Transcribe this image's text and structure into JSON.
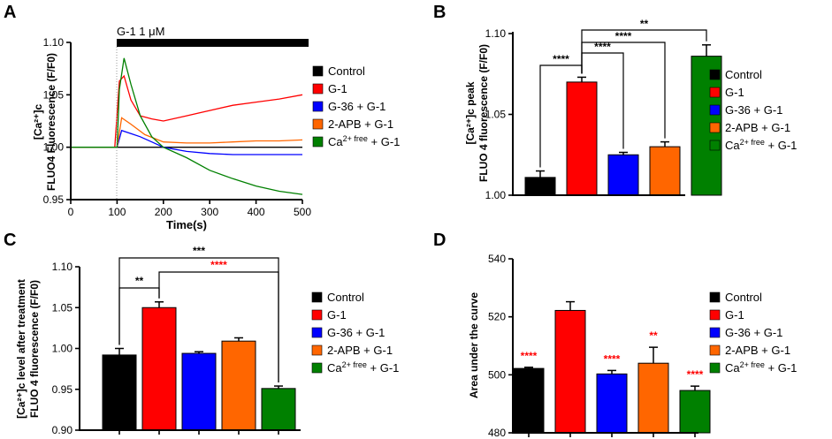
{
  "colors": {
    "control": "#000000",
    "g1": "#ff0000",
    "g36": "#0000ff",
    "apb": "#ff6600",
    "free": "#008000",
    "sig_red": "#ff0000",
    "sig_black": "#000000"
  },
  "legend": [
    {
      "key": "control",
      "text": "Control"
    },
    {
      "key": "g1",
      "text": "G-1"
    },
    {
      "key": "g36",
      "text": "G-36 + G-1"
    },
    {
      "key": "apb",
      "text": "2-APB + G-1"
    },
    {
      "key": "free",
      "text_pre": "Ca",
      "text_sup": "2+ free",
      "text_post": " + G-1"
    }
  ],
  "chart_data": [
    {
      "panel": "A",
      "type": "line",
      "treatment_label": "G-1   1 μM",
      "treatment_start_s": 100,
      "xlabel": "Time(s)",
      "ylabel_line1": "[Ca²⁺]c",
      "ylabel_line2": "FLUO4 Fluorescence (F/F0)",
      "xlim": [
        0,
        500
      ],
      "ylim": [
        0.95,
        1.1
      ],
      "xticks": [
        "0",
        "100",
        "200",
        "300",
        "400",
        "500"
      ],
      "yticks": [
        "0.95",
        "1.00",
        "1.05",
        "1.10"
      ],
      "series": [
        {
          "key": "control",
          "name": "Control",
          "x": [
            0,
            50,
            100,
            150,
            200,
            250,
            300,
            350,
            400,
            450,
            500
          ],
          "y": [
            1.0,
            1.0,
            1.0,
            1.0,
            1.0,
            1.0,
            1.0,
            1.0,
            1.0,
            1.0,
            1.0
          ]
        },
        {
          "key": "g1",
          "name": "G-1",
          "x": [
            0,
            50,
            95,
            105,
            115,
            130,
            150,
            175,
            200,
            250,
            300,
            350,
            400,
            450,
            500
          ],
          "y": [
            1.0,
            1.0,
            1.0,
            1.063,
            1.068,
            1.045,
            1.03,
            1.027,
            1.025,
            1.03,
            1.035,
            1.04,
            1.043,
            1.046,
            1.05
          ]
        },
        {
          "key": "g36",
          "name": "G-36 + G-1",
          "x": [
            0,
            50,
            100,
            110,
            130,
            150,
            175,
            200,
            250,
            300,
            350,
            400,
            450,
            500
          ],
          "y": [
            1.0,
            1.0,
            1.0,
            1.016,
            1.013,
            1.01,
            1.005,
            1.0,
            0.996,
            0.994,
            0.993,
            0.993,
            0.993,
            0.993
          ]
        },
        {
          "key": "apb",
          "name": "2-APB + G-1",
          "x": [
            0,
            50,
            100,
            110,
            130,
            160,
            200,
            250,
            300,
            350,
            400,
            450,
            500
          ],
          "y": [
            1.0,
            1.0,
            1.0,
            1.028,
            1.022,
            1.012,
            1.005,
            1.004,
            1.004,
            1.005,
            1.006,
            1.006,
            1.007
          ]
        },
        {
          "key": "free",
          "name": "Ca2+ free + G-1",
          "x": [
            0,
            50,
            100,
            105,
            115,
            130,
            150,
            175,
            200,
            250,
            300,
            350,
            400,
            450,
            500
          ],
          "y": [
            1.0,
            1.0,
            1.0,
            1.055,
            1.085,
            1.06,
            1.03,
            1.01,
            1.0,
            0.99,
            0.978,
            0.97,
            0.963,
            0.958,
            0.955
          ]
        }
      ]
    },
    {
      "panel": "B",
      "type": "bar",
      "ylabel_line1": "[Ca²⁺]c peak",
      "ylabel_line2": "FLUO 4 fluorescence (F/F0)",
      "ylim": [
        1.0,
        1.1
      ],
      "yticks": [
        "1.00",
        "1.05",
        "1.10"
      ],
      "categories": [
        "Control",
        "G-1",
        "G-36 + G-1",
        "2-APB + G-1",
        "Ca2+ free + G-1"
      ],
      "values": [
        1.011,
        1.07,
        1.025,
        1.03,
        1.086
      ],
      "errors": [
        0.004,
        0.003,
        0.0015,
        0.003,
        0.007
      ],
      "brackets": [
        {
          "from": 1,
          "to": 0,
          "label": "****"
        },
        {
          "from": 1,
          "to": 2,
          "label": "****"
        },
        {
          "from": 1,
          "to": 3,
          "label": "****"
        },
        {
          "from": 1,
          "to": 4,
          "label": "**"
        }
      ]
    },
    {
      "panel": "C",
      "type": "bar",
      "ylabel_line1": "[Ca²⁺]c level after treatment",
      "ylabel_line2": "FLUO 4 fluorescence (F/F0)",
      "ylim": [
        0.9,
        1.1
      ],
      "yticks": [
        "0.90",
        "0.95",
        "1.00",
        "1.05",
        "1.10"
      ],
      "categories": [
        "Control",
        "G-1",
        "G-36 + G-1",
        "2-APB + G-1",
        "Ca2+ free + G-1"
      ],
      "values": [
        0.992,
        1.05,
        0.994,
        1.009,
        0.951
      ],
      "errors": [
        0.008,
        0.007,
        0.002,
        0.004,
        0.003
      ],
      "brackets": [
        {
          "from": 0,
          "to": 1,
          "label": "**",
          "color": "black"
        },
        {
          "from": 1,
          "to": 4,
          "label": "****",
          "color": "red"
        },
        {
          "from": 0,
          "to": 4,
          "label": "***",
          "color": "black"
        }
      ]
    },
    {
      "panel": "D",
      "type": "bar",
      "ylabel": "Area under the curve",
      "ylim": [
        480,
        540
      ],
      "yticks": [
        "480",
        "500",
        "520",
        "540"
      ],
      "categories": [
        "Control",
        "G-1",
        "G-36 + G-1",
        "2-APB + G-1",
        "Ca2+ free + G-1"
      ],
      "values": [
        502.2,
        522.2,
        500.3,
        504.0,
        494.6
      ],
      "errors": [
        0.4,
        3.0,
        1.2,
        5.5,
        1.5
      ],
      "star_labels": [
        "****",
        "",
        "****",
        "**",
        "****"
      ]
    }
  ]
}
